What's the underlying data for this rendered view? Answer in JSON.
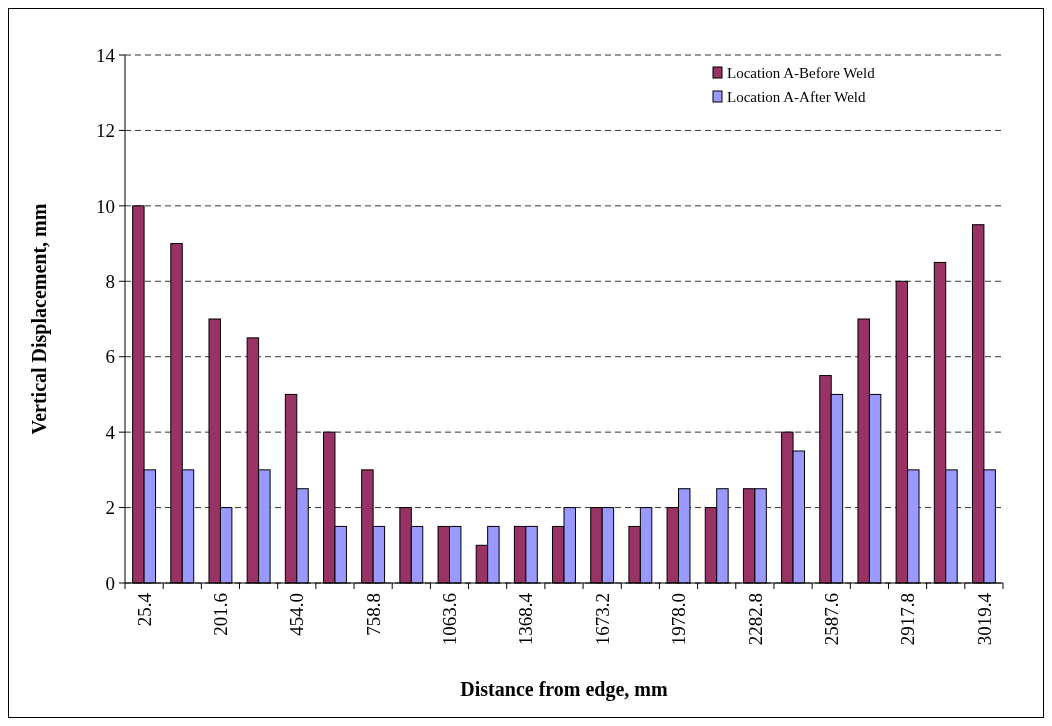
{
  "chart_data": {
    "type": "bar",
    "xlabel": "Distance from edge, mm",
    "ylabel": "Vertical Displacement, mm",
    "categories": [
      "25.4",
      null,
      "201.6",
      null,
      "454.0",
      null,
      "758.8",
      null,
      "1063.6",
      null,
      "1368.4",
      null,
      "1673.2",
      null,
      "1978.0",
      null,
      "2282.8",
      null,
      "2587.6",
      null,
      "2917.8",
      null,
      "3019.4"
    ],
    "series": [
      {
        "name": "Location A-Before Weld",
        "color": "#993366",
        "values": [
          10,
          9,
          7,
          6.5,
          5,
          4,
          3,
          2,
          1.5,
          1,
          1.5,
          1.5,
          2,
          1.5,
          2,
          2,
          2.5,
          4,
          5.5,
          7,
          8,
          8.5,
          9.5
        ]
      },
      {
        "name": "Location A-After Weld",
        "color": "#9999ff",
        "values": [
          3,
          3,
          2,
          3,
          2.5,
          1.5,
          1.5,
          1.5,
          1.5,
          1.5,
          1.5,
          2,
          2,
          2,
          2.5,
          2.5,
          2.5,
          3.5,
          5,
          5,
          3,
          3,
          3
        ]
      }
    ],
    "ylim": [
      0,
      14
    ],
    "yticks": [
      0,
      2,
      4,
      6,
      8,
      10,
      12,
      14
    ],
    "grid": "y",
    "legend": "top right"
  }
}
